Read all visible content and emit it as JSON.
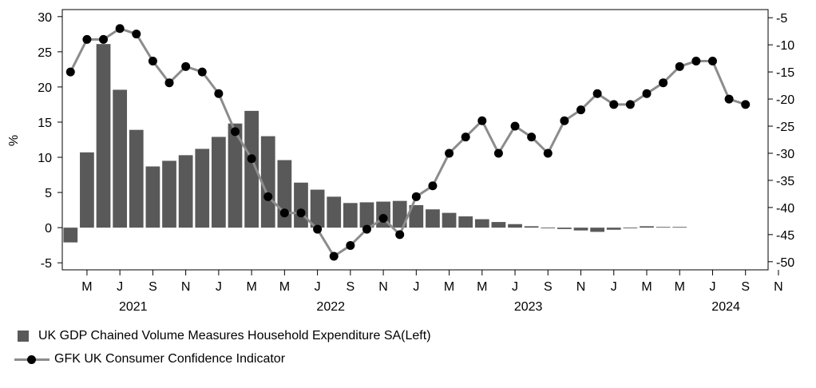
{
  "chart_data": {
    "type": "bar+line",
    "x_months": [
      "2021-03",
      "2021-04",
      "2021-05",
      "2021-06",
      "2021-07",
      "2021-08",
      "2021-09",
      "2021-10",
      "2021-11",
      "2021-12",
      "2022-01",
      "2022-02",
      "2022-03",
      "2022-04",
      "2022-05",
      "2022-06",
      "2022-07",
      "2022-08",
      "2022-09",
      "2022-10",
      "2022-11",
      "2022-12",
      "2023-01",
      "2023-02",
      "2023-03",
      "2023-04",
      "2023-05",
      "2023-06",
      "2023-07",
      "2023-08",
      "2023-09",
      "2023-10",
      "2023-11",
      "2023-12",
      "2024-01",
      "2024-02",
      "2024-03",
      "2024-04",
      "2024-05",
      "2024-06",
      "2024-07",
      "2024-08",
      "2024-09",
      "2024-10"
    ],
    "x_tick_labels": [
      "M",
      "J",
      "S",
      "N",
      "J",
      "M",
      "M",
      "J",
      "S",
      "N",
      "J",
      "M",
      "M",
      "J",
      "S",
      "N",
      "J",
      "M",
      "M",
      "J",
      "S",
      "N"
    ],
    "x_year_labels": [
      "2021",
      "2022",
      "2023",
      "2024"
    ],
    "left_axis": {
      "label": "%",
      "ylim": [
        -6,
        31
      ],
      "ticks": [
        "-5",
        "0",
        "5",
        "10",
        "15",
        "20",
        "25",
        "30"
      ]
    },
    "right_axis": {
      "ylim": [
        -51.5,
        -3.5
      ],
      "ticks": [
        "-5",
        "-10",
        "-15",
        "-20",
        "-25",
        "-30",
        "-35",
        "-40",
        "-45",
        "-50"
      ]
    },
    "series": [
      {
        "name": "UK GDP Chained Volume Measures Household Expenditure SA(Left)",
        "type": "bar",
        "axis": "left",
        "color": "#595959",
        "values": [
          -2.1,
          10.7,
          26.1,
          19.6,
          13.9,
          8.7,
          9.5,
          10.3,
          11.2,
          12.9,
          14.8,
          16.6,
          13.0,
          9.6,
          6.4,
          5.4,
          4.4,
          3.5,
          3.6,
          3.7,
          3.8,
          3.2,
          2.6,
          2.1,
          1.6,
          1.2,
          0.8,
          0.5,
          0.2,
          -0.1,
          -0.2,
          -0.4,
          -0.6,
          -0.3,
          -0.1,
          0.2,
          0.1,
          0.1
        ]
      },
      {
        "name": "GFK UK Consumer Confidence Indicator",
        "type": "line",
        "axis": "right",
        "line_color": "#8c8c8c",
        "marker_color": "#000000",
        "values": [
          -15,
          -9,
          -9,
          -7,
          -8,
          -13,
          -17,
          -14,
          -15,
          -19,
          -26,
          -31,
          -38,
          -41,
          -41,
          -44,
          -49,
          -47,
          -44,
          -42,
          -45,
          -38,
          -36,
          -30,
          -27,
          -24,
          -30,
          -25,
          -27,
          -30,
          -24,
          -22,
          -19,
          -21,
          -21,
          -19,
          -17,
          -14,
          -13,
          -13,
          -20,
          -21
        ]
      }
    ]
  }
}
